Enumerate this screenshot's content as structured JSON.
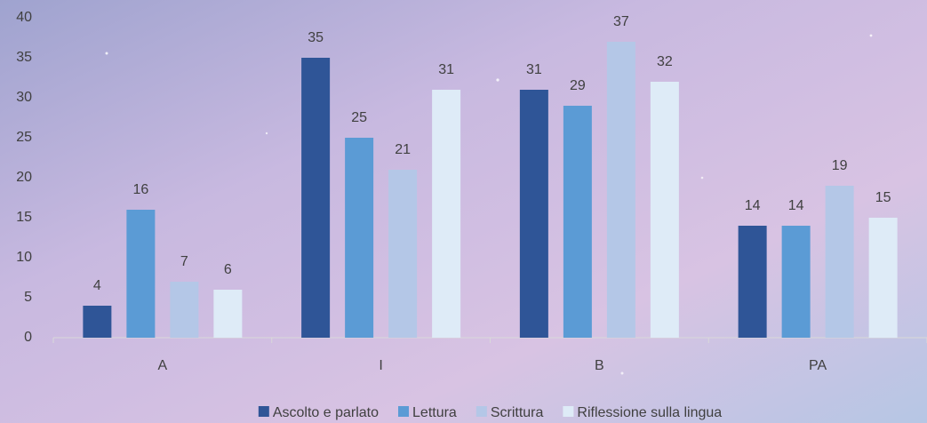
{
  "chart_data": {
    "type": "bar",
    "categories": [
      "A",
      "I",
      "B",
      "PA"
    ],
    "series": [
      {
        "name": "Ascolto e parlato",
        "color": "#2f5597",
        "values": [
          4,
          35,
          31,
          14
        ]
      },
      {
        "name": "Lettura",
        "color": "#5b9bd5",
        "values": [
          16,
          25,
          29,
          14
        ]
      },
      {
        "name": "Scrittura",
        "color": "#b4c7e7",
        "values": [
          7,
          21,
          37,
          19
        ]
      },
      {
        "name": "Riflessione sulla lingua",
        "color": "#deebf7",
        "values": [
          6,
          31,
          32,
          15
        ]
      }
    ],
    "ylim": [
      0,
      40
    ],
    "yticks": [
      0,
      5,
      10,
      15,
      20,
      25,
      30,
      35,
      40
    ],
    "grid": false,
    "legend": "bottom"
  }
}
